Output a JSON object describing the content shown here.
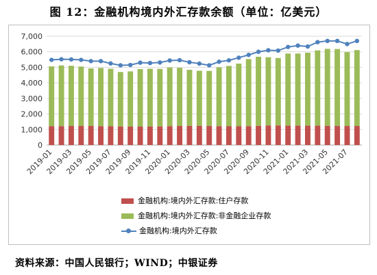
{
  "title": "图 12：金融机构境内外汇存款余额（单位：亿美元）",
  "source": "资料来源：中国人民银行；WIND；中银证券",
  "chart_data": {
    "type": "bar",
    "stacked": true,
    "categories": [
      "2019-01",
      "2019-02",
      "2019-03",
      "2019-04",
      "2019-05",
      "2019-06",
      "2019-07",
      "2019-08",
      "2019-09",
      "2019-10",
      "2019-11",
      "2019-12",
      "2020-01",
      "2020-02",
      "2020-03",
      "2020-04",
      "2020-05",
      "2020-06",
      "2020-07",
      "2020-08",
      "2020-09",
      "2020-10",
      "2020-11",
      "2020-12",
      "2021-01",
      "2021-02",
      "2021-03",
      "2021-04",
      "2021-05",
      "2021-06",
      "2021-07",
      "2021-08"
    ],
    "tick_labels": [
      "2019-01",
      "2019-03",
      "2019-05",
      "2019-07",
      "2019-09",
      "2019-11",
      "2020-01",
      "2020-03",
      "2020-05",
      "2020-07",
      "2020-09",
      "2020-11",
      "2021-01",
      "2021-03",
      "2021-05",
      "2021-07"
    ],
    "ylim": [
      0,
      7000
    ],
    "yticks": [
      "0",
      "1,000",
      "2,000",
      "3,000",
      "4,000",
      "5,000",
      "6,000",
      "7,000"
    ],
    "grid": true,
    "legend_position": "bottom",
    "series": [
      {
        "name": "金融机构:境内外汇存款:住户存款",
        "kind": "bar",
        "color": "#C0504D",
        "values": [
          1220,
          1220,
          1230,
          1230,
          1230,
          1220,
          1210,
          1200,
          1190,
          1190,
          1190,
          1200,
          1220,
          1230,
          1240,
          1240,
          1230,
          1220,
          1210,
          1210,
          1220,
          1240,
          1260,
          1260,
          1250,
          1250,
          1250,
          1250,
          1240,
          1230,
          1230,
          1230
        ]
      },
      {
        "name": "金融机构:境内外汇存款:非金融企业存款",
        "kind": "bar",
        "color": "#9BBB59",
        "values": [
          3840,
          3900,
          3870,
          3820,
          3700,
          3740,
          3700,
          3500,
          3550,
          3700,
          3720,
          3700,
          3770,
          3740,
          3600,
          3540,
          3540,
          3780,
          3880,
          4030,
          4310,
          4440,
          4390,
          4340,
          4640,
          4640,
          4690,
          4840,
          4950,
          4950,
          4750,
          4880
        ]
      },
      {
        "name": "金融机构:境内外汇存款",
        "kind": "line",
        "color": "#4F81BD",
        "values": [
          5480,
          5520,
          5510,
          5480,
          5400,
          5400,
          5250,
          5130,
          5150,
          5300,
          5280,
          5310,
          5440,
          5460,
          5330,
          5240,
          5130,
          5360,
          5450,
          5620,
          5800,
          6000,
          6100,
          6080,
          6310,
          6400,
          6340,
          6620,
          6700,
          6700,
          6500,
          6700
        ]
      }
    ]
  }
}
